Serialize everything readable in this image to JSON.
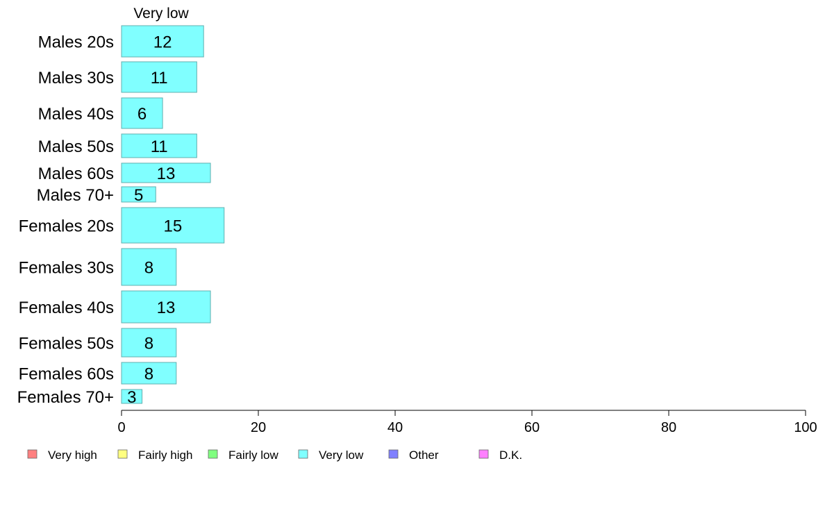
{
  "chart_data": {
    "type": "bar",
    "orientation": "horizontal",
    "column_header": "Very low",
    "categories": [
      "Males 20s",
      "Males 30s",
      "Males 40s",
      "Males 50s",
      "Males 60s",
      "Males 70+",
      "Females 20s",
      "Females 30s",
      "Females 40s",
      "Females 50s",
      "Females 60s",
      "Females 70+"
    ],
    "values": [
      12,
      11,
      6,
      11,
      13,
      5,
      15,
      8,
      13,
      8,
      8,
      3
    ],
    "series": [
      {
        "name": "Very low",
        "values": [
          12,
          11,
          6,
          11,
          13,
          5,
          15,
          8,
          13,
          8,
          8,
          3
        ],
        "color": "#80FFFF"
      }
    ],
    "xlim": [
      0,
      100
    ],
    "xticks": [
      0,
      20,
      40,
      60,
      80,
      100
    ],
    "legend": {
      "placement": "bottom",
      "items": [
        {
          "label": "Very high",
          "color": "#FF8080"
        },
        {
          "label": "Fairly high",
          "color": "#FFFF80"
        },
        {
          "label": "Fairly low",
          "color": "#80FF80"
        },
        {
          "label": "Very low",
          "color": "#80FFFF"
        },
        {
          "label": "Other",
          "color": "#8080FF"
        },
        {
          "label": "D.K.",
          "color": "#FF80FF"
        }
      ]
    },
    "grid": false
  }
}
